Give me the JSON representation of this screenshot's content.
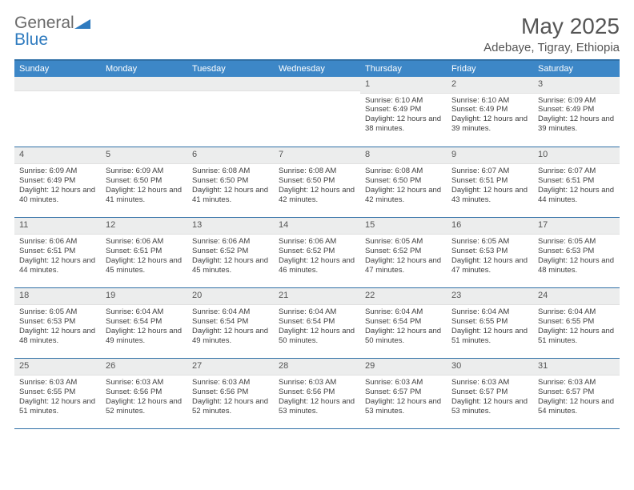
{
  "logo": {
    "part1": "General",
    "part2": "Blue"
  },
  "title": "May 2025",
  "location": "Adebaye, Tigray, Ethiopia",
  "weekday_header_bg": "#3d87c7",
  "weekdays": [
    "Sunday",
    "Monday",
    "Tuesday",
    "Wednesday",
    "Thursday",
    "Friday",
    "Saturday"
  ],
  "weeks": [
    [
      {
        "day": "",
        "lines": []
      },
      {
        "day": "",
        "lines": []
      },
      {
        "day": "",
        "lines": []
      },
      {
        "day": "",
        "lines": []
      },
      {
        "day": "1",
        "lines": [
          "Sunrise: 6:10 AM",
          "Sunset: 6:49 PM",
          "Daylight: 12 hours and 38 minutes."
        ]
      },
      {
        "day": "2",
        "lines": [
          "Sunrise: 6:10 AM",
          "Sunset: 6:49 PM",
          "Daylight: 12 hours and 39 minutes."
        ]
      },
      {
        "day": "3",
        "lines": [
          "Sunrise: 6:09 AM",
          "Sunset: 6:49 PM",
          "Daylight: 12 hours and 39 minutes."
        ]
      }
    ],
    [
      {
        "day": "4",
        "lines": [
          "Sunrise: 6:09 AM",
          "Sunset: 6:49 PM",
          "Daylight: 12 hours and 40 minutes."
        ]
      },
      {
        "day": "5",
        "lines": [
          "Sunrise: 6:09 AM",
          "Sunset: 6:50 PM",
          "Daylight: 12 hours and 41 minutes."
        ]
      },
      {
        "day": "6",
        "lines": [
          "Sunrise: 6:08 AM",
          "Sunset: 6:50 PM",
          "Daylight: 12 hours and 41 minutes."
        ]
      },
      {
        "day": "7",
        "lines": [
          "Sunrise: 6:08 AM",
          "Sunset: 6:50 PM",
          "Daylight: 12 hours and 42 minutes."
        ]
      },
      {
        "day": "8",
        "lines": [
          "Sunrise: 6:08 AM",
          "Sunset: 6:50 PM",
          "Daylight: 12 hours and 42 minutes."
        ]
      },
      {
        "day": "9",
        "lines": [
          "Sunrise: 6:07 AM",
          "Sunset: 6:51 PM",
          "Daylight: 12 hours and 43 minutes."
        ]
      },
      {
        "day": "10",
        "lines": [
          "Sunrise: 6:07 AM",
          "Sunset: 6:51 PM",
          "Daylight: 12 hours and 44 minutes."
        ]
      }
    ],
    [
      {
        "day": "11",
        "lines": [
          "Sunrise: 6:06 AM",
          "Sunset: 6:51 PM",
          "Daylight: 12 hours and 44 minutes."
        ]
      },
      {
        "day": "12",
        "lines": [
          "Sunrise: 6:06 AM",
          "Sunset: 6:51 PM",
          "Daylight: 12 hours and 45 minutes."
        ]
      },
      {
        "day": "13",
        "lines": [
          "Sunrise: 6:06 AM",
          "Sunset: 6:52 PM",
          "Daylight: 12 hours and 45 minutes."
        ]
      },
      {
        "day": "14",
        "lines": [
          "Sunrise: 6:06 AM",
          "Sunset: 6:52 PM",
          "Daylight: 12 hours and 46 minutes."
        ]
      },
      {
        "day": "15",
        "lines": [
          "Sunrise: 6:05 AM",
          "Sunset: 6:52 PM",
          "Daylight: 12 hours and 47 minutes."
        ]
      },
      {
        "day": "16",
        "lines": [
          "Sunrise: 6:05 AM",
          "Sunset: 6:53 PM",
          "Daylight: 12 hours and 47 minutes."
        ]
      },
      {
        "day": "17",
        "lines": [
          "Sunrise: 6:05 AM",
          "Sunset: 6:53 PM",
          "Daylight: 12 hours and 48 minutes."
        ]
      }
    ],
    [
      {
        "day": "18",
        "lines": [
          "Sunrise: 6:05 AM",
          "Sunset: 6:53 PM",
          "Daylight: 12 hours and 48 minutes."
        ]
      },
      {
        "day": "19",
        "lines": [
          "Sunrise: 6:04 AM",
          "Sunset: 6:54 PM",
          "Daylight: 12 hours and 49 minutes."
        ]
      },
      {
        "day": "20",
        "lines": [
          "Sunrise: 6:04 AM",
          "Sunset: 6:54 PM",
          "Daylight: 12 hours and 49 minutes."
        ]
      },
      {
        "day": "21",
        "lines": [
          "Sunrise: 6:04 AM",
          "Sunset: 6:54 PM",
          "Daylight: 12 hours and 50 minutes."
        ]
      },
      {
        "day": "22",
        "lines": [
          "Sunrise: 6:04 AM",
          "Sunset: 6:54 PM",
          "Daylight: 12 hours and 50 minutes."
        ]
      },
      {
        "day": "23",
        "lines": [
          "Sunrise: 6:04 AM",
          "Sunset: 6:55 PM",
          "Daylight: 12 hours and 51 minutes."
        ]
      },
      {
        "day": "24",
        "lines": [
          "Sunrise: 6:04 AM",
          "Sunset: 6:55 PM",
          "Daylight: 12 hours and 51 minutes."
        ]
      }
    ],
    [
      {
        "day": "25",
        "lines": [
          "Sunrise: 6:03 AM",
          "Sunset: 6:55 PM",
          "Daylight: 12 hours and 51 minutes."
        ]
      },
      {
        "day": "26",
        "lines": [
          "Sunrise: 6:03 AM",
          "Sunset: 6:56 PM",
          "Daylight: 12 hours and 52 minutes."
        ]
      },
      {
        "day": "27",
        "lines": [
          "Sunrise: 6:03 AM",
          "Sunset: 6:56 PM",
          "Daylight: 12 hours and 52 minutes."
        ]
      },
      {
        "day": "28",
        "lines": [
          "Sunrise: 6:03 AM",
          "Sunset: 6:56 PM",
          "Daylight: 12 hours and 53 minutes."
        ]
      },
      {
        "day": "29",
        "lines": [
          "Sunrise: 6:03 AM",
          "Sunset: 6:57 PM",
          "Daylight: 12 hours and 53 minutes."
        ]
      },
      {
        "day": "30",
        "lines": [
          "Sunrise: 6:03 AM",
          "Sunset: 6:57 PM",
          "Daylight: 12 hours and 53 minutes."
        ]
      },
      {
        "day": "31",
        "lines": [
          "Sunrise: 6:03 AM",
          "Sunset: 6:57 PM",
          "Daylight: 12 hours and 54 minutes."
        ]
      }
    ]
  ]
}
